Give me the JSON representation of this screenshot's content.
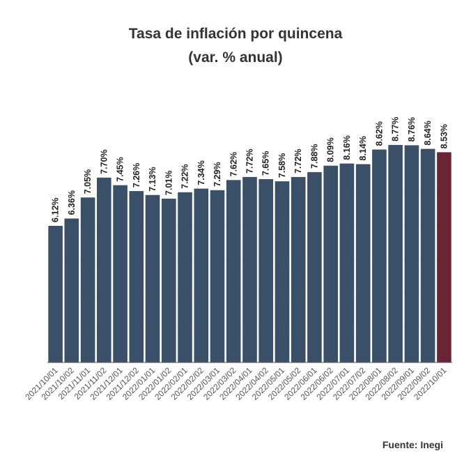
{
  "chart_data": {
    "type": "bar",
    "title": "Tasa de inflación por quincena",
    "subtitle": "(var. % anual)",
    "categories": [
      "2021/10/01",
      "2021/10/02",
      "2021/11/01",
      "2021/11/02",
      "2021/12/01",
      "2021/12/02",
      "2022/01/01",
      "2022/01/02",
      "2022/02/01",
      "2022/02/02",
      "2022/03/01",
      "2022/03/02",
      "2022/04/01",
      "2022/04/02",
      "2022/05/01",
      "2022/05/02",
      "2022/06/01",
      "2022/06/02",
      "2022/07/01",
      "2022/07/02",
      "2022/08/01",
      "2022/08/02",
      "2022/09/01",
      "2022/09/02",
      "2022/10/01"
    ],
    "values": [
      6.12,
      6.36,
      7.05,
      7.7,
      7.45,
      7.26,
      7.13,
      7.01,
      7.22,
      7.34,
      7.29,
      7.62,
      7.72,
      7.65,
      7.58,
      7.72,
      7.88,
      8.09,
      8.16,
      8.14,
      8.62,
      8.77,
      8.76,
      8.64,
      8.53
    ],
    "value_labels": [
      "6.12%",
      "6.36%",
      "7.05%",
      "7.70%",
      "7.45%",
      "7.26%",
      "7.13%",
      "7.01%",
      "7.22%",
      "7.34%",
      "7.29%",
      "7.62%",
      "7.72%",
      "7.65%",
      "7.58%",
      "7.72%",
      "7.88%",
      "8.09%",
      "8.16%",
      "8.14%",
      "8.62%",
      "8.77%",
      "8.76%",
      "8.64%",
      "8.53%"
    ],
    "ylim": [
      0,
      10
    ],
    "grid": true,
    "colors": {
      "default": "#3a5068",
      "highlight": "#6b2336",
      "grid": "#eeeeee",
      "axis": "#555555"
    },
    "highlight_index": 24
  },
  "footer": {
    "source": "Fuente: Inegi"
  }
}
